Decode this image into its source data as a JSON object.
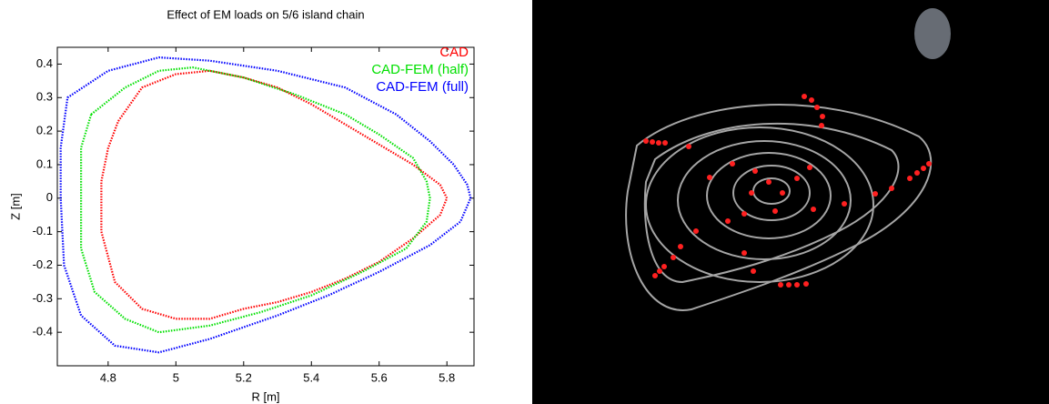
{
  "chart_data": {
    "type": "line",
    "title": "Effect of EM loads on 5/6 island chain",
    "xlabel": "R [m]",
    "ylabel": "Z [m]",
    "xlim": [
      4.65,
      5.88
    ],
    "ylim": [
      -0.5,
      0.45
    ],
    "xticks": [
      4.8,
      5,
      5.2,
      5.4,
      5.6,
      5.8
    ],
    "yticks": [
      -0.4,
      -0.3,
      -0.2,
      -0.1,
      0,
      0.1,
      0.2,
      0.3,
      0.4
    ],
    "legend": "upper right",
    "series": [
      {
        "name": "CAD",
        "color": "#ff0000",
        "x": [
          4.83,
          4.9,
          5.0,
          5.1,
          5.2,
          5.3,
          5.4,
          5.5,
          5.6,
          5.7,
          5.78,
          5.8,
          5.78,
          5.7,
          5.6,
          5.5,
          5.4,
          5.3,
          5.2,
          5.1,
          5.0,
          4.9,
          4.82,
          4.78,
          4.78,
          4.8
        ],
        "values": [
          0.23,
          0.33,
          0.37,
          0.38,
          0.36,
          0.33,
          0.28,
          0.22,
          0.16,
          0.1,
          0.04,
          0,
          -0.05,
          -0.12,
          -0.19,
          -0.24,
          -0.28,
          -0.31,
          -0.33,
          -0.36,
          -0.36,
          -0.33,
          -0.25,
          -0.1,
          0.05,
          0.15
        ]
      },
      {
        "name": "CAD-FEM (half)",
        "color": "#00e000",
        "x": [
          4.75,
          4.85,
          4.95,
          5.05,
          5.2,
          5.35,
          5.5,
          5.6,
          5.7,
          5.74,
          5.75,
          5.74,
          5.68,
          5.55,
          5.4,
          5.25,
          5.1,
          4.95,
          4.85,
          4.76,
          4.72,
          4.72,
          4.72
        ],
        "values": [
          0.25,
          0.33,
          0.38,
          0.39,
          0.36,
          0.31,
          0.25,
          0.19,
          0.12,
          0.05,
          0,
          -0.07,
          -0.15,
          -0.22,
          -0.29,
          -0.34,
          -0.38,
          -0.4,
          -0.36,
          -0.28,
          -0.15,
          0,
          0.15
        ]
      },
      {
        "name": "CAD-FEM (full)",
        "color": "#0000ff",
        "x": [
          4.68,
          4.8,
          4.95,
          5.1,
          5.3,
          5.5,
          5.65,
          5.75,
          5.82,
          5.86,
          5.87,
          5.84,
          5.75,
          5.6,
          5.45,
          5.3,
          5.1,
          4.95,
          4.82,
          4.72,
          4.67,
          4.66,
          4.66
        ],
        "values": [
          0.3,
          0.38,
          0.42,
          0.41,
          0.38,
          0.33,
          0.25,
          0.17,
          0.1,
          0.04,
          0,
          -0.07,
          -0.14,
          -0.22,
          -0.29,
          -0.35,
          -0.42,
          -0.46,
          -0.44,
          -0.35,
          -0.2,
          0,
          0.15
        ]
      }
    ]
  }
}
